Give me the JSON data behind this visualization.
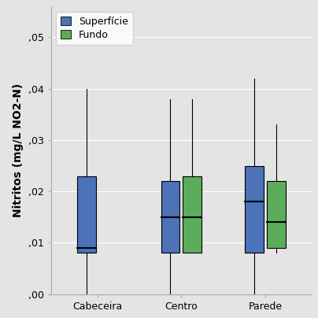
{
  "categories": [
    "Cabeceira",
    "Centro",
    "Parede"
  ],
  "series": {
    "Superficie": {
      "label": "Superfície",
      "color": "#4C72B8",
      "edge_color": "#3A5A9A",
      "boxes": [
        {
          "whislo": 0.0,
          "q1": 0.008,
          "med": 0.009,
          "q3": 0.023,
          "whishi": 0.04
        },
        {
          "whislo": 0.0,
          "q1": 0.008,
          "med": 0.015,
          "q3": 0.022,
          "whishi": 0.038
        },
        {
          "whislo": 0.0,
          "q1": 0.008,
          "med": 0.018,
          "q3": 0.025,
          "whishi": 0.042
        }
      ]
    },
    "Fundo": {
      "label": "Fundo",
      "color": "#5BAD5B",
      "edge_color": "#3D9B3D",
      "boxes": [
        null,
        {
          "whislo": 0.008,
          "q1": 0.008,
          "med": 0.015,
          "q3": 0.023,
          "whishi": 0.038
        },
        {
          "whislo": 0.008,
          "q1": 0.009,
          "med": 0.014,
          "q3": 0.022,
          "whishi": 0.033
        }
      ]
    }
  },
  "ylabel": "Nitritos (mg/L NO2-N)",
  "ylim": [
    0.0,
    0.056
  ],
  "yticks": [
    0.0,
    0.01,
    0.02,
    0.03,
    0.04,
    0.05
  ],
  "ytick_labels": [
    ",00",
    ",01",
    ",02",
    ",03",
    ",04",
    ",05"
  ],
  "background_color": "#E4E4E4",
  "plot_bg_color": "#E4E4E4",
  "box_width": 0.22,
  "offsets": [
    -0.13,
    0.13
  ],
  "axis_fontsize": 10,
  "tick_fontsize": 9,
  "legend_fontsize": 9,
  "figsize": [
    4.04,
    4.04
  ],
  "dpi": 100
}
